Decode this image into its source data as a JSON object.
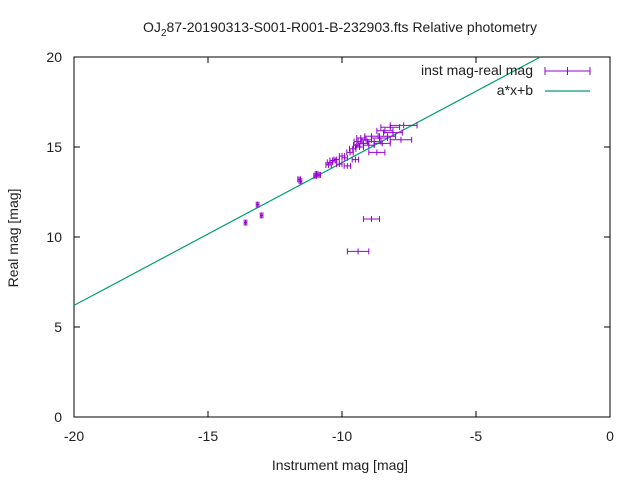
{
  "chart_data": {
    "type": "scatter",
    "title": "OJ 287-20190313-S001-R001-B-232903.fts Relative photometry",
    "title_parts": {
      "before": "OJ",
      "subscript": "2",
      "after": "87-20190313-S001-R001-B-232903.fts Relative photometry"
    },
    "xlabel": "Instrument mag [mag]",
    "ylabel": "Real mag [mag]",
    "xlim": [
      -20,
      0
    ],
    "ylim": [
      0,
      20
    ],
    "x_ticks": [
      -20,
      -15,
      -10,
      -5,
      0
    ],
    "y_ticks": [
      0,
      5,
      10,
      15,
      20
    ],
    "x_tick_labels": [
      "-20",
      "-15",
      "-10",
      "-5",
      "0"
    ],
    "y_tick_labels": [
      "0",
      "5",
      "10",
      "15",
      "20"
    ],
    "grid": false,
    "legend_position": "top-right",
    "series": [
      {
        "name": "inst mag-real mag",
        "kind": "points_with_xerror",
        "color": "#9400d3",
        "points": [
          {
            "x": -13.6,
            "y": 10.8,
            "xerr": 0.05
          },
          {
            "x": -13.15,
            "y": 11.8,
            "xerr": 0.05
          },
          {
            "x": -13.0,
            "y": 11.2,
            "xerr": 0.05
          },
          {
            "x": -11.6,
            "y": 13.2,
            "xerr": 0.05
          },
          {
            "x": -11.55,
            "y": 13.1,
            "xerr": 0.05
          },
          {
            "x": -11.0,
            "y": 13.4,
            "xerr": 0.05
          },
          {
            "x": -10.95,
            "y": 13.5,
            "xerr": 0.05
          },
          {
            "x": -10.85,
            "y": 13.45,
            "xerr": 0.05
          },
          {
            "x": -10.5,
            "y": 14.0,
            "xerr": 0.1
          },
          {
            "x": -10.45,
            "y": 14.15,
            "xerr": 0.1
          },
          {
            "x": -10.35,
            "y": 14.25,
            "xerr": 0.1
          },
          {
            "x": -10.2,
            "y": 14.3,
            "xerr": 0.1
          },
          {
            "x": -10.1,
            "y": 14.05,
            "xerr": 0.1
          },
          {
            "x": -10.0,
            "y": 14.5,
            "xerr": 0.1
          },
          {
            "x": -9.9,
            "y": 14.4,
            "xerr": 0.1
          },
          {
            "x": -9.8,
            "y": 13.95,
            "xerr": 0.12
          },
          {
            "x": -9.7,
            "y": 14.7,
            "xerr": 0.12
          },
          {
            "x": -9.6,
            "y": 14.9,
            "xerr": 0.12
          },
          {
            "x": -9.5,
            "y": 14.3,
            "xerr": 0.12
          },
          {
            "x": -9.45,
            "y": 15.1,
            "xerr": 0.12
          },
          {
            "x": -9.4,
            "y": 15.3,
            "xerr": 0.15
          },
          {
            "x": -9.35,
            "y": 15.0,
            "xerr": 0.15
          },
          {
            "x": -9.3,
            "y": 15.5,
            "xerr": 0.15
          },
          {
            "x": -9.2,
            "y": 15.2,
            "xerr": 0.2
          },
          {
            "x": -9.1,
            "y": 15.4,
            "xerr": 0.2
          },
          {
            "x": -9.0,
            "y": 15.1,
            "xerr": 0.2
          },
          {
            "x": -8.9,
            "y": 15.6,
            "xerr": 0.25
          },
          {
            "x": -8.8,
            "y": 15.3,
            "xerr": 0.25
          },
          {
            "x": -8.7,
            "y": 14.7,
            "xerr": 0.3
          },
          {
            "x": -8.6,
            "y": 15.5,
            "xerr": 0.3
          },
          {
            "x": -8.5,
            "y": 15.2,
            "xerr": 0.3
          },
          {
            "x": -8.4,
            "y": 15.9,
            "xerr": 0.3
          },
          {
            "x": -8.3,
            "y": 15.6,
            "xerr": 0.3
          },
          {
            "x": -8.2,
            "y": 16.1,
            "xerr": 0.35
          },
          {
            "x": -8.1,
            "y": 15.8,
            "xerr": 0.35
          },
          {
            "x": -7.8,
            "y": 15.4,
            "xerr": 0.4
          },
          {
            "x": -7.7,
            "y": 16.2,
            "xerr": 0.5
          },
          {
            "x": -8.9,
            "y": 11.0,
            "xerr": 0.3
          },
          {
            "x": -9.4,
            "y": 9.2,
            "xerr": 0.4
          }
        ]
      },
      {
        "name": "a*x+b",
        "kind": "line",
        "color": "#009e73",
        "points": [
          {
            "x": -20,
            "y": 6.2
          },
          {
            "x": -2.6,
            "y": 20
          }
        ]
      }
    ]
  }
}
